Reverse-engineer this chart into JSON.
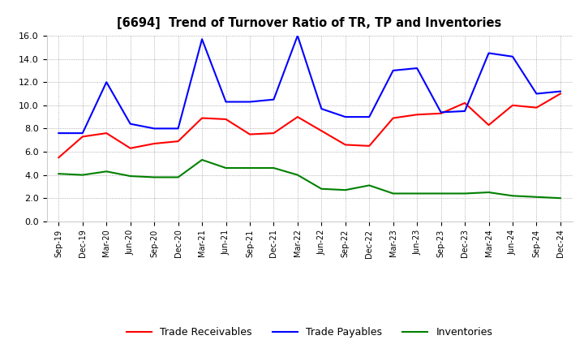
{
  "title": "[6694]  Trend of Turnover Ratio of TR, TP and Inventories",
  "labels": [
    "Sep-19",
    "Dec-19",
    "Mar-20",
    "Jun-20",
    "Sep-20",
    "Dec-20",
    "Mar-21",
    "Jun-21",
    "Sep-21",
    "Dec-21",
    "Mar-22",
    "Jun-22",
    "Sep-22",
    "Dec-22",
    "Mar-23",
    "Jun-23",
    "Sep-23",
    "Dec-23",
    "Mar-24",
    "Jun-24",
    "Sep-24",
    "Dec-24"
  ],
  "trade_receivables": [
    5.5,
    7.3,
    7.6,
    6.3,
    6.7,
    6.9,
    8.9,
    8.8,
    7.5,
    7.6,
    9.0,
    7.8,
    6.6,
    6.5,
    8.9,
    9.2,
    9.3,
    10.2,
    8.3,
    10.0,
    9.8,
    11.0
  ],
  "trade_payables": [
    7.6,
    7.6,
    12.0,
    8.4,
    8.0,
    8.0,
    15.7,
    10.3,
    10.3,
    10.5,
    16.0,
    9.7,
    9.0,
    9.0,
    13.0,
    13.2,
    9.4,
    9.5,
    14.5,
    14.2,
    11.0,
    11.2
  ],
  "inventories": [
    4.1,
    4.0,
    4.3,
    3.9,
    3.8,
    3.8,
    5.3,
    4.6,
    4.6,
    4.6,
    4.0,
    2.8,
    2.7,
    3.1,
    2.4,
    2.4,
    2.4,
    2.4,
    2.5,
    2.2,
    2.1,
    2.0
  ],
  "ylim": [
    0.0,
    16.0
  ],
  "yticks": [
    0.0,
    2.0,
    4.0,
    6.0,
    8.0,
    10.0,
    12.0,
    14.0,
    16.0
  ],
  "tr_color": "#ff0000",
  "tp_color": "#0000ff",
  "inv_color": "#008000",
  "legend_labels": [
    "Trade Receivables",
    "Trade Payables",
    "Inventories"
  ],
  "background_color": "#ffffff",
  "grid_color": "#aaaaaa"
}
